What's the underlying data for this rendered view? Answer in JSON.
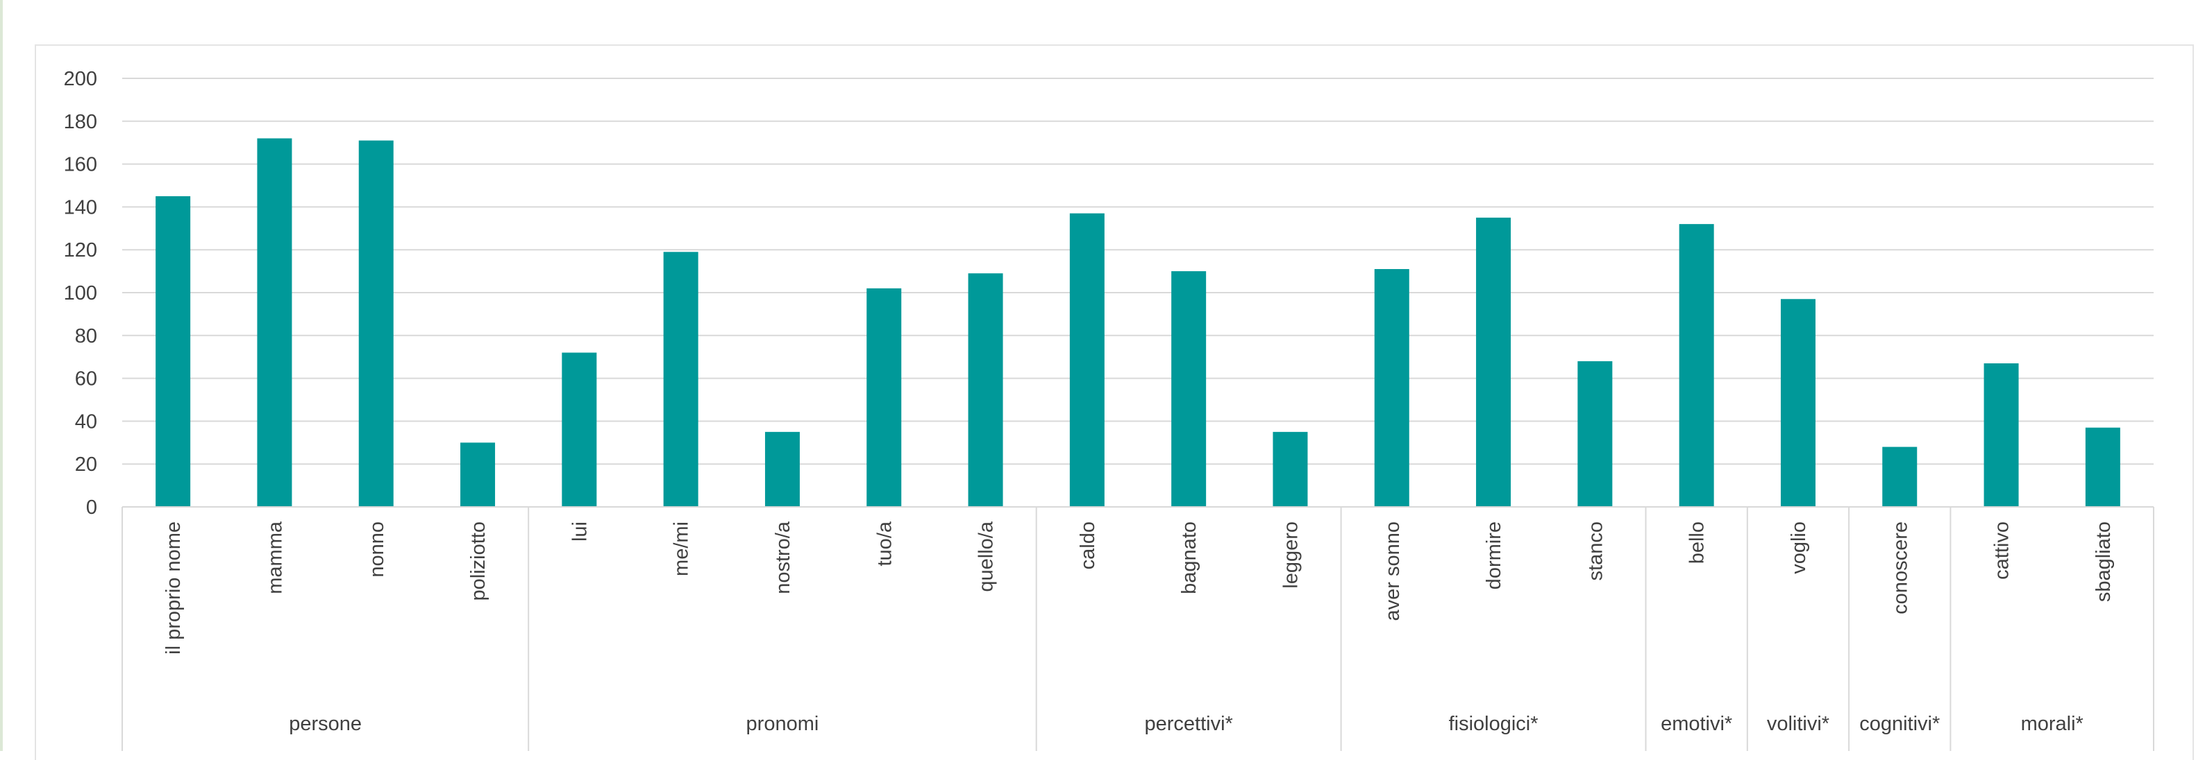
{
  "chart_data": {
    "type": "bar",
    "title": "",
    "xlabel": "",
    "ylabel": "",
    "ylim": [
      0,
      200
    ],
    "yticks": [
      0,
      20,
      40,
      60,
      80,
      100,
      120,
      140,
      160,
      180,
      200
    ],
    "grid": true,
    "legend": "none",
    "bar_color": "#009999",
    "categories": [
      "il proprio nome",
      "mamma",
      "nonno",
      "poliziotto",
      "lui",
      "me/mi",
      "nostro/a",
      "tuo/a",
      "quello/a",
      "caldo",
      "bagnato",
      "leggero",
      "aver sonno",
      "dormire",
      "stanco",
      "bello",
      "voglio",
      "conoscere",
      "cattivo",
      "sbagliato"
    ],
    "values": [
      145,
      172,
      171,
      30,
      72,
      119,
      35,
      102,
      109,
      137,
      110,
      35,
      111,
      135,
      68,
      132,
      97,
      28,
      67,
      37
    ],
    "groups": [
      {
        "label": "persone",
        "start": 0,
        "count": 4
      },
      {
        "label": "pronomi",
        "start": 4,
        "count": 5
      },
      {
        "label": "percettivi*",
        "start": 9,
        "count": 3
      },
      {
        "label": "fisiologici*",
        "start": 12,
        "count": 3
      },
      {
        "label": "emotivi*",
        "start": 15,
        "count": 1
      },
      {
        "label": "volitivi*",
        "start": 16,
        "count": 1
      },
      {
        "label": "cognitivi*",
        "start": 17,
        "count": 1
      },
      {
        "label": "morali*",
        "start": 18,
        "count": 2
      }
    ]
  }
}
